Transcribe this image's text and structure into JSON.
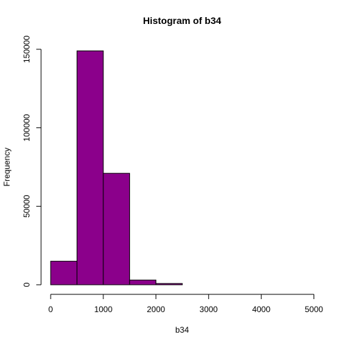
{
  "chart_data": {
    "type": "bar",
    "title": "Histogram of b34",
    "xlabel": "b34",
    "ylabel": "Frequency",
    "bar_color": "#8b008b",
    "bins": [
      {
        "start": 0,
        "end": 500,
        "count": 15000
      },
      {
        "start": 500,
        "end": 1000,
        "count": 149000
      },
      {
        "start": 1000,
        "end": 1500,
        "count": 71000
      },
      {
        "start": 1500,
        "end": 2000,
        "count": 3000
      },
      {
        "start": 2000,
        "end": 2500,
        "count": 800
      },
      {
        "start": 2500,
        "end": 3000,
        "count": 0
      },
      {
        "start": 3000,
        "end": 3500,
        "count": 0
      },
      {
        "start": 3500,
        "end": 4000,
        "count": 0
      },
      {
        "start": 4000,
        "end": 4500,
        "count": 0
      },
      {
        "start": 4500,
        "end": 5000,
        "count": 0
      },
      {
        "start": 5000,
        "end": 5200,
        "count": 0
      }
    ],
    "xlim": [
      0,
      5200
    ],
    "ylim": [
      0,
      150000
    ],
    "xticks": [
      0,
      1000,
      2000,
      3000,
      4000,
      5000
    ],
    "yticks": [
      0,
      50000,
      100000,
      150000
    ],
    "xtick_labels": [
      "0",
      "1000",
      "2000",
      "3000",
      "4000",
      "5000"
    ],
    "ytick_labels": [
      "0",
      "50000",
      "100000",
      "150000"
    ]
  }
}
